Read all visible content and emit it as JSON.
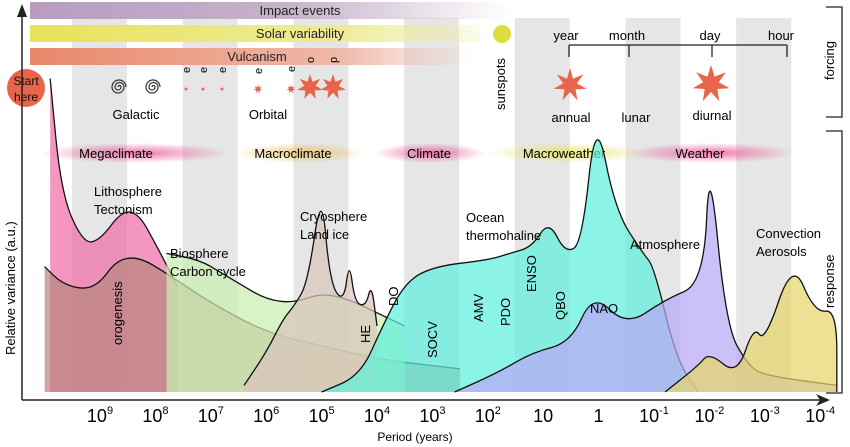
{
  "forcing_bars": [
    {
      "label": "Impact events",
      "color": "#b79cbf"
    },
    {
      "label": "Solar variability",
      "color": "#e6e35a"
    },
    {
      "label": "Vulcanism",
      "color": "#e8876a"
    }
  ],
  "start_label_line1": "Start",
  "start_label_line2": "here",
  "forcing_icons": {
    "galactic": "Galactic",
    "orbital": "Orbital",
    "orbital_letters": [
      "e",
      "e",
      "e",
      "e",
      "e",
      "o",
      "p"
    ],
    "sunspots": "sunspots",
    "annual": "annual",
    "lunar": "lunar",
    "diurnal": "diurnal"
  },
  "timescale_bracket": [
    "year",
    "month",
    "day",
    "hour"
  ],
  "side_brackets": {
    "forcing": "forcing",
    "response": "response"
  },
  "regimes": [
    {
      "label": "Megaclimate",
      "color": "#e8468a"
    },
    {
      "label": "Macroclimate",
      "color": "#e8b84a"
    },
    {
      "label": "Climate",
      "color": "#e8468a"
    },
    {
      "label": "Macroweather",
      "color": "#e6e35a"
    },
    {
      "label": "Weather",
      "color": "#e8468a"
    }
  ],
  "chart_data": {
    "type": "area",
    "title": "",
    "xlabel": "Period (years)",
    "ylabel": "Relative variance (a.u.)",
    "x_scale": "log (decreasing)",
    "x_ticks": [
      "10^9",
      "10^8",
      "10^7",
      "10^6",
      "10^5",
      "10^4",
      "10^3",
      "10^2",
      "10",
      "1",
      "10^-1",
      "10^-2",
      "10^-3",
      "10^-4"
    ],
    "x_tick_exponents": [
      9,
      8,
      7,
      6,
      5,
      4,
      3,
      2,
      1,
      0,
      -1,
      -2,
      -3,
      -4
    ],
    "x_range_log10": [
      10,
      -4.3
    ],
    "y_range": [
      0,
      1
    ],
    "grid": "alternating vertical bands",
    "series": [
      {
        "name": "Lithosphere Tectonism",
        "color": "#f06fa8",
        "label_lines": [
          "Lithosphere",
          "Tectonism"
        ],
        "points": [
          [
            9.9,
            0.95
          ],
          [
            9.7,
            0.6
          ],
          [
            9.3,
            0.45
          ],
          [
            9.0,
            0.46
          ],
          [
            8.6,
            0.55
          ],
          [
            8.3,
            0.54
          ],
          [
            8.0,
            0.45
          ],
          [
            7.6,
            0.32
          ]
        ]
      },
      {
        "name": "orogenesis",
        "color": "#b88580",
        "label_lines": [
          "orogenesis"
        ],
        "points": [
          [
            10,
            0.38
          ],
          [
            9.7,
            0.33
          ],
          [
            9.3,
            0.31
          ],
          [
            9.0,
            0.33
          ],
          [
            8.7,
            0.4
          ],
          [
            8.3,
            0.41
          ],
          [
            7.8,
            0.36
          ],
          [
            7,
            0.27
          ],
          [
            6,
            0.18
          ],
          [
            5,
            0.14
          ],
          [
            4,
            0.1
          ],
          [
            3,
            0.08
          ],
          [
            2.5,
            0.07
          ]
        ]
      },
      {
        "name": "Biosphere Carbon cycle",
        "color": "#c9f0b0",
        "label_lines": [
          "Biosphere",
          "Carbon cycle"
        ],
        "points": [
          [
            7.8,
            0.42
          ],
          [
            7.2,
            0.4
          ],
          [
            6.8,
            0.36
          ],
          [
            6.5,
            0.33
          ],
          [
            6.0,
            0.28
          ],
          [
            5.5,
            0.27
          ],
          [
            5.0,
            0.3
          ],
          [
            4.5,
            0.28
          ],
          [
            4.0,
            0.24
          ],
          [
            3.5,
            0.2
          ]
        ]
      },
      {
        "name": "Cryosphere Land ice",
        "color": "#d9c5bd",
        "label_lines": [
          "Cryosphere",
          "Land ice"
        ],
        "points": [
          [
            6.4,
            0.02
          ],
          [
            6.0,
            0.12
          ],
          [
            5.7,
            0.22
          ],
          [
            5.5,
            0.26
          ],
          [
            5.25,
            0.33
          ],
          [
            5.0,
            0.62
          ],
          [
            4.85,
            0.33
          ],
          [
            4.6,
            0.27
          ],
          [
            4.5,
            0.4
          ],
          [
            4.4,
            0.27
          ],
          [
            4.2,
            0.26
          ],
          [
            4.1,
            0.33
          ],
          [
            4.0,
            0.2
          ]
        ]
      },
      {
        "name": "Ocean thermohaline",
        "color": "#5ef0dc",
        "label_lines": [
          "Ocean",
          "thermohaline"
        ],
        "points": [
          [
            5.0,
            0.0
          ],
          [
            4.3,
            0.05
          ],
          [
            3.9,
            0.2
          ],
          [
            3.5,
            0.33
          ],
          [
            3.0,
            0.38
          ],
          [
            2.0,
            0.4
          ],
          [
            1.6,
            0.42
          ],
          [
            1.2,
            0.44
          ],
          [
            0.9,
            0.52
          ],
          [
            0.6,
            0.42
          ],
          [
            0.3,
            0.45
          ],
          [
            0.05,
            0.85
          ],
          [
            -0.3,
            0.55
          ],
          [
            -0.8,
            0.42
          ],
          [
            -1.0,
            0.38
          ],
          [
            -1.4,
            0.1
          ],
          [
            -1.8,
            0.0
          ]
        ]
      },
      {
        "name": "Atmosphere",
        "color": "#b8a8f5",
        "label_lines": [
          "Atmosphere"
        ],
        "points": [
          [
            2.6,
            0.0
          ],
          [
            1.8,
            0.06
          ],
          [
            1.2,
            0.12
          ],
          [
            0.5,
            0.15
          ],
          [
            0.1,
            0.3
          ],
          [
            -0.5,
            0.2
          ],
          [
            -1.2,
            0.28
          ],
          [
            -1.9,
            0.33
          ],
          [
            -2.0,
            0.72
          ],
          [
            -2.3,
            0.2
          ],
          [
            -2.7,
            0.08
          ],
          [
            -3.0,
            0.05
          ],
          [
            -4.3,
            0.02
          ]
        ]
      },
      {
        "name": "Convection Aerosols",
        "color": "#e6d66a",
        "label_lines": [
          "Convection",
          "Aerosols"
        ],
        "points": [
          [
            -1.2,
            0.0
          ],
          [
            -1.8,
            0.08
          ],
          [
            -2.0,
            0.12
          ],
          [
            -2.5,
            0.05
          ],
          [
            -2.8,
            0.2
          ],
          [
            -3.0,
            0.15
          ],
          [
            -3.5,
            0.4
          ],
          [
            -3.9,
            0.24
          ],
          [
            -4.3,
            0.25
          ],
          [
            -4.3,
            0.0
          ]
        ]
      }
    ],
    "annotations": [
      "HE",
      "DO",
      "SOCV",
      "AMV",
      "PDO",
      "ENSO",
      "QBO",
      "NAO"
    ]
  }
}
